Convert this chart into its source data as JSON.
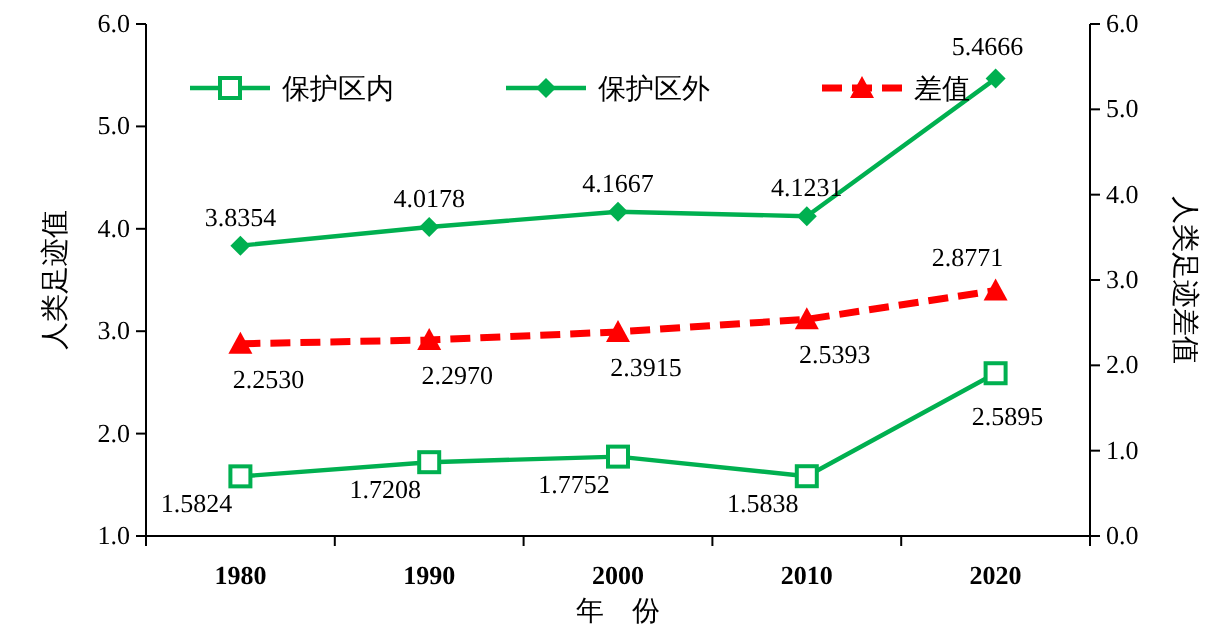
{
  "chart_data": {
    "type": "line",
    "xlabel": "年　份",
    "ylabel": "人类足迹值",
    "y2label": "人类足迹差值",
    "categories": [
      "1980",
      "1990",
      "2000",
      "2010",
      "2020"
    ],
    "series": [
      {
        "name": "保护区内",
        "color": "#00b050",
        "values": [
          1.5824,
          1.7208,
          1.7752,
          1.5838,
          2.5895
        ],
        "marker": "square",
        "line_style": "solid"
      },
      {
        "name": "保护区外",
        "color": "#00b050",
        "values": [
          3.8354,
          4.0178,
          4.1667,
          4.1231,
          5.4666
        ],
        "marker": "diamond",
        "line_style": "solid"
      },
      {
        "name": "差值",
        "color": "#ff0000",
        "values": [
          2.253,
          2.297,
          2.3915,
          2.5393,
          2.8771
        ],
        "marker": "triangle",
        "line_style": "dashed",
        "axis": "y2"
      }
    ],
    "ylim": [
      1,
      6
    ],
    "yticks": [
      {
        "value": 1,
        "label": "1.0"
      },
      {
        "value": 2,
        "label": "2.0"
      },
      {
        "value": 3,
        "label": "3.0"
      },
      {
        "value": 4,
        "label": "4.0"
      },
      {
        "value": 5,
        "label": "5.0"
      },
      {
        "value": 6,
        "label": "6.0"
      }
    ],
    "y2lim": [
      0,
      6
    ],
    "y2ticks": [
      {
        "value": 0,
        "label": "0.0"
      },
      {
        "value": 1,
        "label": "1.0"
      },
      {
        "value": 2,
        "label": "2.0"
      },
      {
        "value": 3,
        "label": "3.0"
      },
      {
        "value": 4,
        "label": "4.0"
      },
      {
        "value": 5,
        "label": "5.0"
      },
      {
        "value": 6,
        "label": "6.0"
      }
    ],
    "value_labels": [
      [
        "1.5824",
        "1.7208",
        "1.7752",
        "1.5838",
        "2.5895"
      ],
      [
        "3.8354",
        "4.0178",
        "4.1667",
        "4.1231",
        "5.4666"
      ],
      [
        "2.2530",
        "2.2970",
        "2.3915",
        "2.5393",
        "2.8771"
      ]
    ],
    "grid": false,
    "legend": "top left"
  }
}
